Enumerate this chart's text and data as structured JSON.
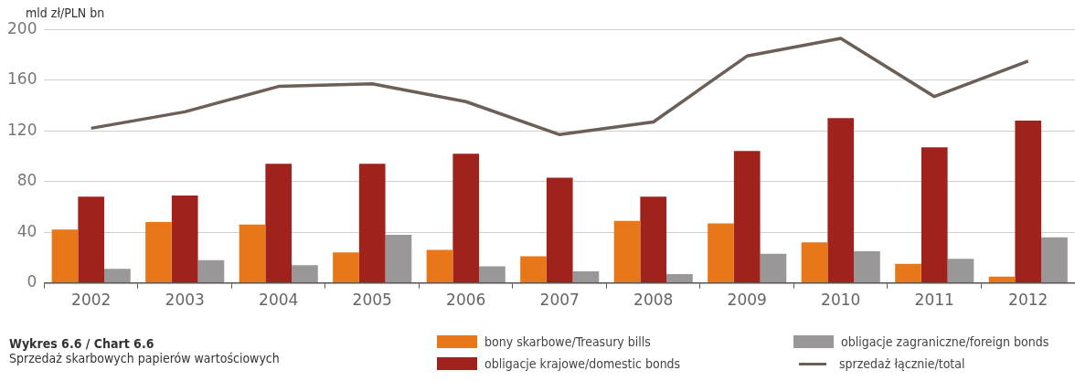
{
  "chart_data": {
    "type": "bar",
    "title": "Wykres 6.6 / Chart 6.6",
    "subtitle": "Sprzedaż skarbowych papierów wartościowych",
    "ylabel": "mld zł/PLN bn",
    "categories": [
      "2002",
      "2003",
      "2004",
      "2005",
      "2006",
      "2007",
      "2008",
      "2009",
      "2010",
      "2011",
      "2012"
    ],
    "series": [
      {
        "name": "bony skarbowe/Treasury bills",
        "color": "#e8771a",
        "values": [
          42,
          48,
          46,
          24,
          26,
          21,
          49,
          47,
          32,
          15,
          5
        ]
      },
      {
        "name": "obligacje krajowe/domestic bonds",
        "color": "#a0221d",
        "values": [
          68,
          69,
          94,
          94,
          102,
          83,
          68,
          104,
          130,
          107,
          128
        ]
      },
      {
        "name": "obligacje zagraniczne/foreign bonds",
        "color": "#999797",
        "values": [
          11,
          18,
          14,
          38,
          13,
          9,
          7,
          23,
          25,
          19,
          36
        ]
      },
      {
        "name": "sprzedaż łącznie/total",
        "type": "line",
        "color": "#6b5f57",
        "values": [
          122,
          135,
          155,
          157,
          143,
          117,
          127,
          179,
          193,
          147,
          175
        ]
      }
    ],
    "ylim": [
      0,
      200
    ],
    "yticks": [
      0,
      40,
      80,
      120,
      160,
      200
    ],
    "grid": "y",
    "legend": "bottom",
    "marker": "none",
    "line_style": "solid"
  }
}
